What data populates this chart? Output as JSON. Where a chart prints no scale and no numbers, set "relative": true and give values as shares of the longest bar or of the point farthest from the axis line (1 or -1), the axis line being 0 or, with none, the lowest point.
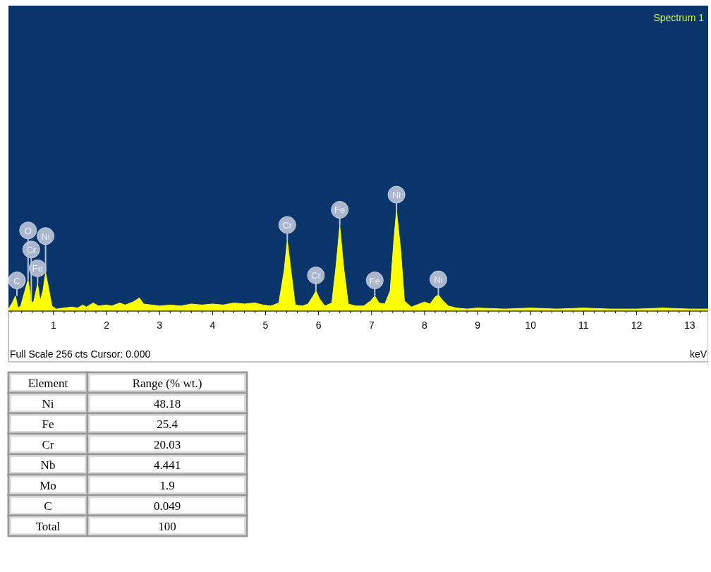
{
  "chart_data": [
    {
      "type": "area",
      "title": "Spectrum 1",
      "xlabel": "keV",
      "relative": true,
      "color": "#ffff00",
      "xlim": [
        0.15,
        13.35
      ],
      "xticks": [
        1,
        2,
        3,
        4,
        5,
        6,
        7,
        8,
        9,
        10,
        11,
        12,
        13,
        {
          "value": 0.2,
          "label": null
        },
        {
          "value": 0.4,
          "label": null
        },
        {
          "value": 0.6,
          "label": null
        },
        {
          "value": 0.8,
          "label": null
        },
        {
          "value": 1.2,
          "label": null
        },
        {
          "value": 1.4,
          "label": null
        },
        {
          "value": 1.6,
          "label": null
        },
        {
          "value": 1.8,
          "label": null
        },
        {
          "value": 2.2,
          "label": null
        },
        {
          "value": 2.4,
          "label": null
        },
        {
          "value": 2.6,
          "label": null
        },
        {
          "value": 2.8,
          "label": null
        },
        {
          "value": 3.2,
          "label": null
        },
        {
          "value": 3.4,
          "label": null
        },
        {
          "value": 3.6,
          "label": null
        },
        {
          "value": 3.8,
          "label": null
        },
        {
          "value": 4.2,
          "label": null
        },
        {
          "value": 4.4,
          "label": null
        },
        {
          "value": 4.6,
          "label": null
        },
        {
          "value": 4.8,
          "label": null
        },
        {
          "value": 5.2,
          "label": null
        },
        {
          "value": 5.4,
          "label": null
        },
        {
          "value": 5.6,
          "label": null
        },
        {
          "value": 5.8,
          "label": null
        },
        {
          "value": 6.2,
          "label": null
        },
        {
          "value": 6.4,
          "label": null
        },
        {
          "value": 6.6,
          "label": null
        },
        {
          "value": 6.8,
          "label": null
        },
        {
          "value": 7.2,
          "label": null
        },
        {
          "value": 7.4,
          "label": null
        },
        {
          "value": 7.6,
          "label": null
        },
        {
          "value": 7.8,
          "label": null
        },
        {
          "value": 8.2,
          "label": null
        },
        {
          "value": 8.4,
          "label": null
        },
        {
          "value": 8.6,
          "label": null
        },
        {
          "value": 8.8,
          "label": null
        },
        {
          "value": 9.2,
          "label": null
        },
        {
          "value": 9.4,
          "label": null
        },
        {
          "value": 9.6,
          "label": null
        },
        {
          "value": 9.8,
          "label": null
        },
        {
          "value": 10.2,
          "label": null
        },
        {
          "value": 10.4,
          "label": null
        },
        {
          "value": 10.6,
          "label": null
        },
        {
          "value": 10.8,
          "label": null
        },
        {
          "value": 11.2,
          "label": null
        },
        {
          "value": 11.4,
          "label": null
        },
        {
          "value": 11.6,
          "label": null
        },
        {
          "value": 11.8,
          "label": null
        },
        {
          "value": 12.2,
          "label": null
        },
        {
          "value": 12.4,
          "label": null
        },
        {
          "value": 12.6,
          "label": null
        },
        {
          "value": 12.8,
          "label": null
        },
        {
          "value": 13.2,
          "label": null
        }
      ],
      "x": [
        0.15,
        0.22,
        0.28,
        0.33,
        0.38,
        0.46,
        0.52,
        0.58,
        0.62,
        0.7,
        0.75,
        0.8,
        0.85,
        0.9,
        0.97,
        1.05,
        1.2,
        1.35,
        1.45,
        1.55,
        1.62,
        1.75,
        1.85,
        2.0,
        2.1,
        2.25,
        2.35,
        2.5,
        2.62,
        2.7,
        2.85,
        3.0,
        3.2,
        3.4,
        3.6,
        3.8,
        4.0,
        4.2,
        4.4,
        4.6,
        4.8,
        4.95,
        5.1,
        5.25,
        5.35,
        5.41,
        5.48,
        5.56,
        5.7,
        5.8,
        5.9,
        5.95,
        6.02,
        6.12,
        6.25,
        6.33,
        6.4,
        6.47,
        6.56,
        6.7,
        6.85,
        6.98,
        7.06,
        7.14,
        7.25,
        7.35,
        7.42,
        7.47,
        7.55,
        7.62,
        7.75,
        7.9,
        8.0,
        8.1,
        8.2,
        8.26,
        8.35,
        8.45,
        8.6,
        8.8,
        9.0,
        9.5,
        10.0,
        10.5,
        11.0,
        11.5,
        12.0,
        12.5,
        13.0,
        13.35
      ],
      "values": [
        0.02,
        0.08,
        0.15,
        0.03,
        0.05,
        0.2,
        0.31,
        0.1,
        0.08,
        0.27,
        0.1,
        0.2,
        0.38,
        0.25,
        0.05,
        0.02,
        0.03,
        0.04,
        0.03,
        0.06,
        0.04,
        0.08,
        0.05,
        0.06,
        0.05,
        0.08,
        0.06,
        0.09,
        0.13,
        0.07,
        0.06,
        0.05,
        0.06,
        0.05,
        0.07,
        0.06,
        0.07,
        0.06,
        0.08,
        0.07,
        0.08,
        0.06,
        0.05,
        0.08,
        0.4,
        0.7,
        0.4,
        0.06,
        0.05,
        0.07,
        0.15,
        0.2,
        0.12,
        0.05,
        0.08,
        0.45,
        0.85,
        0.45,
        0.07,
        0.05,
        0.05,
        0.1,
        0.15,
        0.08,
        0.07,
        0.2,
        0.7,
        1,
        0.6,
        0.1,
        0.04,
        0.07,
        0.09,
        0.07,
        0.14,
        0.16,
        0.1,
        0.05,
        0.03,
        0.02,
        0.03,
        0.02,
        0.03,
        0.02,
        0.03,
        0.02,
        0.02,
        0.03,
        0.02,
        0.02
      ],
      "annotations": [
        {
          "text": "C",
          "x": 0.28,
          "y": 0.15
        },
        {
          "text": "Fe",
          "x": 0.7,
          "y": 0.27
        },
        {
          "text": "Cr",
          "x": 0.58,
          "y": 0.1
        },
        {
          "text": "O",
          "x": 0.52,
          "y": 0.31
        },
        {
          "text": "Ni",
          "x": 0.85,
          "y": 0.38
        },
        {
          "text": "Cr",
          "x": 5.41,
          "y": 0.7
        },
        {
          "text": "Cr",
          "x": 5.95,
          "y": 0.2
        },
        {
          "text": "Fe",
          "x": 6.4,
          "y": 0.85
        },
        {
          "text": "Fe",
          "x": 7.06,
          "y": 0.15
        },
        {
          "text": "Ni",
          "x": 7.47,
          "y": 1
        },
        {
          "text": "Ni",
          "x": 8.26,
          "y": 0.16
        },
        "Full Scale 256 cts Cursor: 0.000"
      ]
    },
    {
      "type": "other",
      "data_labels": true,
      "xlabel": "Element",
      "ylabel": "Range (% wt.)",
      "categories": [
        "Ni",
        "Fe",
        "Cr",
        "Nb",
        "Mo",
        "C",
        "Total"
      ],
      "values": [
        48.18,
        25.4,
        20.03,
        4.441,
        1.9,
        0.049,
        100
      ]
    }
  ]
}
